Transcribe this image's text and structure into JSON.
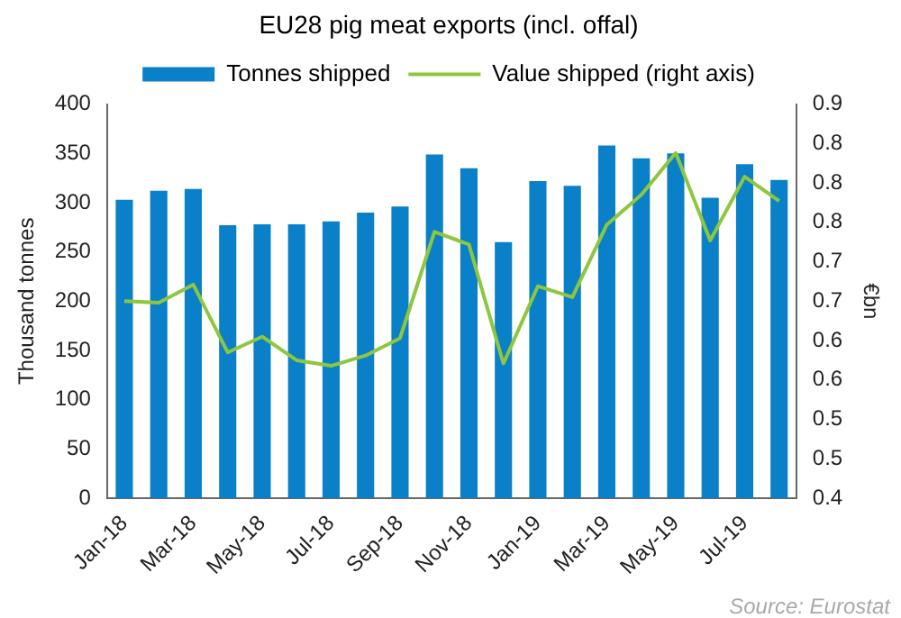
{
  "chart_data": {
    "type": "bar",
    "title": "EU28 pig meat exports (incl. offal)",
    "categories": [
      "Jan-18",
      null,
      "Mar-18",
      null,
      "May-18",
      null,
      "Jul-18",
      null,
      "Sep-18",
      null,
      "Nov-18",
      null,
      "Jan-19",
      null,
      "Mar-19",
      null,
      "May-19",
      null,
      "Jul-19",
      null
    ],
    "series": [
      {
        "name": "Tonnes shipped",
        "color": "#0a80c8",
        "values": [
          303,
          312,
          314,
          277,
          278,
          278,
          281,
          290,
          296,
          349,
          335,
          260,
          322,
          317,
          358,
          345,
          350,
          305,
          339,
          323
        ]
      },
      {
        "name": "Value shipped (right axis)",
        "type": "line",
        "axis": "y2",
        "color": "#8dc63f",
        "values": [
          0.65,
          0.648,
          0.671,
          0.585,
          0.605,
          0.575,
          0.568,
          0.581,
          0.603,
          0.738,
          0.722,
          0.571,
          0.669,
          0.655,
          0.747,
          0.785,
          0.838,
          0.727,
          0.808,
          0.777
        ]
      }
    ],
    "ylabel": "Thousand tonnes",
    "y2label": "€bn",
    "ylim": [
      0,
      400
    ],
    "yticks": [
      0,
      50,
      100,
      150,
      200,
      250,
      300,
      350,
      400
    ],
    "y2lim": [
      0.4,
      0.9
    ],
    "y2ticks": [
      0.4,
      {
        "value": 0.45,
        "label": "0.5"
      },
      0.5,
      {
        "value": 0.55,
        "label": "0.6"
      },
      0.6,
      {
        "value": 0.65,
        "label": "0.7"
      },
      0.7,
      {
        "value": 0.75,
        "label": "0.8"
      },
      0.8,
      {
        "value": 0.85,
        "label": "0.8"
      },
      0.9
    ],
    "grid": false,
    "legend": "top",
    "marker": "none",
    "annotations": [
      "Source: Eurostat"
    ]
  }
}
